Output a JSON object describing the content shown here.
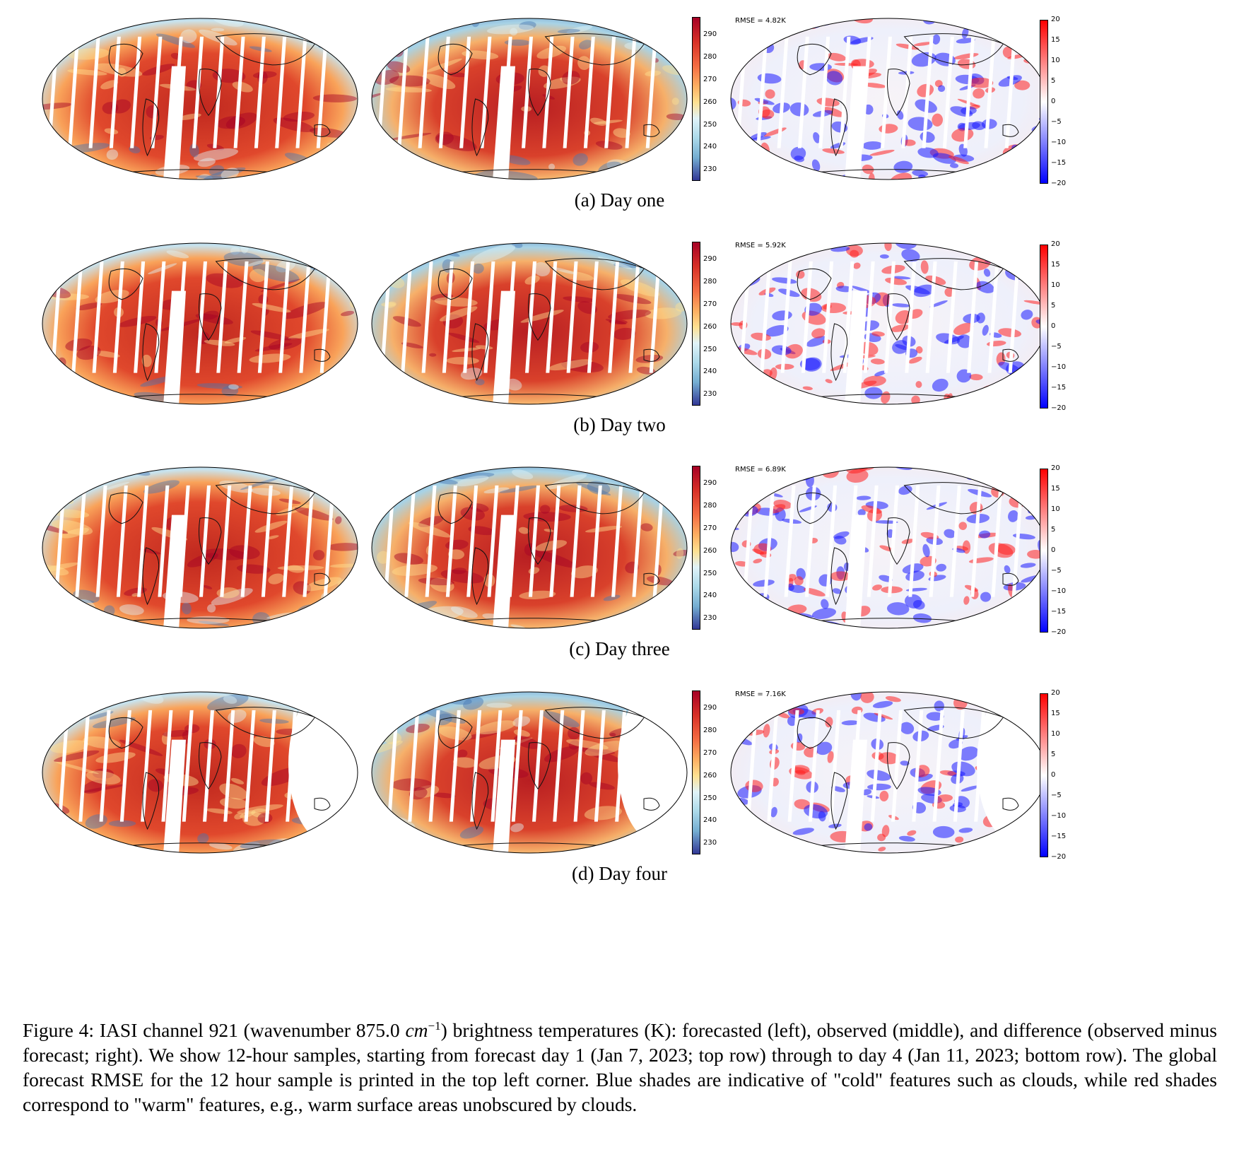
{
  "figure": {
    "rows": [
      {
        "label": "(a)",
        "title": "Day one",
        "rmse": "RMSE = 4.82K"
      },
      {
        "label": "(b)",
        "title": "Day two",
        "rmse": "RMSE = 5.92K"
      },
      {
        "label": "(c)",
        "title": "Day three",
        "rmse": "RMSE = 6.89K"
      },
      {
        "label": "(d)",
        "title": "Day four",
        "rmse": "RMSE = 7.16K"
      }
    ],
    "temp_colorbar": {
      "min": 225,
      "max": 298,
      "ticks": [
        "290",
        "280",
        "270",
        "260",
        "250",
        "240",
        "230"
      ],
      "tick_values": [
        290,
        280,
        270,
        260,
        250,
        240,
        230
      ]
    },
    "diff_colorbar": {
      "min": -20,
      "max": 20,
      "ticks": [
        "20",
        "15",
        "10",
        "5",
        "0",
        "−5",
        "−10",
        "−15",
        "−20"
      ],
      "tick_values": [
        20,
        15,
        10,
        5,
        0,
        -5,
        -10,
        -15,
        -20
      ]
    },
    "colors": {
      "warm": "#b2182b",
      "cold": "#2c4f9e",
      "diff_pos": "#ff0000",
      "diff_neg": "#0000ff"
    }
  },
  "caption": {
    "prefix": "Figure 4: IASI channel 921 (wavenumber 875.0 ",
    "unit": "cm",
    "exponent": "−1",
    "rest": ") brightness temperatures (K): forecasted (left), observed (middle), and difference (observed minus forecast; right). We show 12-hour samples, starting from forecast day 1 (Jan 7, 2023; top row) through to day 4 (Jan 11, 2023; bottom row). The global forecast RMSE for the 12 hour sample is printed in the top left corner. Blue shades are indicative of \"cold\" features such as clouds, while red shades correspond to \"warm\" features, e.g., warm surface areas unobscured by clouds."
  }
}
